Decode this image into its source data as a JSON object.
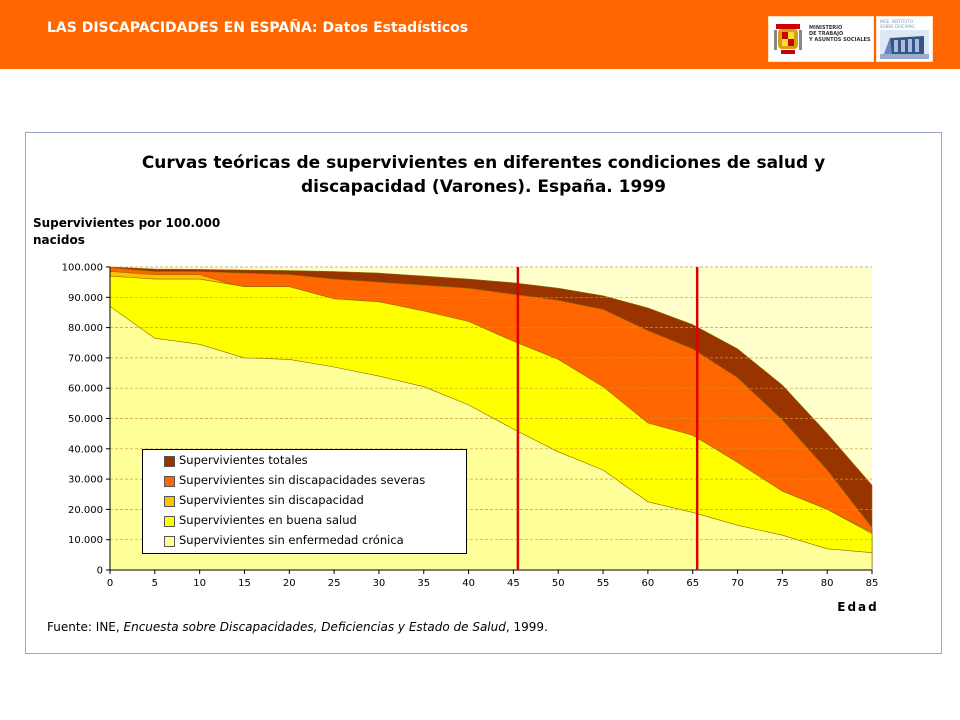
{
  "header": {
    "title": "LAS DISCAPACIDADES EN ESPAÑA: Datos Estadísticos",
    "ministry_logo_text": "MINISTERIO\nDE TRABAJO\nY ASUNTOS SOCIALES",
    "institute_logo_text": "INSE. INSTITUTO\nSOBRE DISCAPAC.",
    "colors": {
      "bar": "#ff6600",
      "text": "#ffffff"
    }
  },
  "chart_data": {
    "type": "area",
    "title_line1": "Curvas teóricas de supervivientes en diferentes condiciones de salud y",
    "title_line2": "discapacidad (Varones). España. 1999",
    "ylabel": "Supervivientes por 100.000 nacidos",
    "xlabel": "Edad",
    "x": [
      0,
      5,
      10,
      15,
      20,
      25,
      30,
      35,
      40,
      45,
      50,
      55,
      60,
      65,
      70,
      75,
      80,
      85
    ],
    "ylim": [
      0,
      100000
    ],
    "xlim": [
      0,
      85
    ],
    "y_ticks": [
      "0",
      "10.000",
      "20.000",
      "30.000",
      "40.000",
      "50.000",
      "60.000",
      "70.000",
      "80.000",
      "90.000",
      "100.000"
    ],
    "x_ticks": [
      "0",
      "5",
      "10",
      "15",
      "20",
      "25",
      "30",
      "35",
      "40",
      "45",
      "50",
      "55",
      "60",
      "65",
      "70",
      "75",
      "80",
      "85"
    ],
    "grid": "horizontal dashed",
    "legend_position": "bottom-left inside plot",
    "series": [
      {
        "name": "Supervivientes totales",
        "color": "#993300",
        "values": [
          100000,
          99300,
          99200,
          99000,
          98800,
          98500,
          98000,
          97000,
          96000,
          94800,
          93000,
          90500,
          86500,
          81000,
          73000,
          61000,
          45000,
          28000
        ]
      },
      {
        "name": "Supervivientes sin discapacidades severas",
        "color": "#ff6600",
        "values": [
          99800,
          98500,
          98500,
          98000,
          97500,
          96000,
          95000,
          94000,
          93000,
          91000,
          89000,
          86000,
          79000,
          73000,
          63500,
          49500,
          33000,
          14000
        ]
      },
      {
        "name": "Supervivientes sin discapacidad",
        "color": "#ffc000",
        "values": [
          98500,
          97500,
          97500,
          93000,
          93000,
          89000,
          88000,
          85000,
          81500,
          75000,
          69500,
          60000,
          48000,
          44000,
          35000,
          26000,
          20000,
          12500
        ]
      },
      {
        "name": "Supervivientes en buena salud",
        "color": "#ffff00",
        "values": [
          97000,
          96000,
          96000,
          93500,
          93500,
          89500,
          88500,
          85500,
          82000,
          75500,
          69500,
          60500,
          48500,
          44500,
          35500,
          26000,
          20000,
          12000
        ]
      },
      {
        "name": "Supervivientes sin enfermedad crónica",
        "color": "#ffff99",
        "values": [
          87000,
          76500,
          74500,
          70000,
          69500,
          67000,
          64000,
          60500,
          54500,
          46500,
          39000,
          33000,
          22500,
          19000,
          14800,
          11500,
          7000,
          5700
        ]
      }
    ],
    "vertical_markers": [
      45.5,
      65.5
    ],
    "marker_color": "#dd0000",
    "plot_background": "#ffffcc"
  },
  "source": {
    "prefix": "Fuente: INE, ",
    "italic": "Encuesta sobre Discapacidades, Deficiencias y Estado de Salud",
    "suffix": ", 1999."
  }
}
